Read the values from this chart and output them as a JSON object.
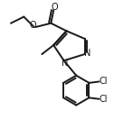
{
  "bg_color": "#ffffff",
  "line_color": "#1a1a1a",
  "line_width": 1.4,
  "font_size": 7.0,
  "figsize": [
    1.47,
    1.43
  ],
  "dpi": 100,
  "xlim": [
    0,
    1
  ],
  "ylim": [
    0,
    1
  ]
}
